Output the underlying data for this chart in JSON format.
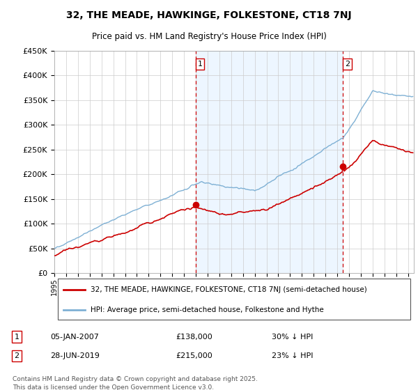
{
  "title_line1": "32, THE MEADE, HAWKINGE, FOLKESTONE, CT18 7NJ",
  "title_line2": "Price paid vs. HM Land Registry's House Price Index (HPI)",
  "legend_label_red": "32, THE MEADE, HAWKINGE, FOLKESTONE, CT18 7NJ (semi-detached house)",
  "legend_label_blue": "HPI: Average price, semi-detached house, Folkestone and Hythe",
  "transaction1_label": "1",
  "transaction1_date": "05-JAN-2007",
  "transaction1_price": "£138,000",
  "transaction1_hpi": "30% ↓ HPI",
  "transaction2_label": "2",
  "transaction2_date": "28-JUN-2019",
  "transaction2_price": "£215,000",
  "transaction2_hpi": "23% ↓ HPI",
  "footer": "Contains HM Land Registry data © Crown copyright and database right 2025.\nThis data is licensed under the Open Government Licence v3.0.",
  "color_red": "#cc0000",
  "color_blue": "#7eb0d4",
  "color_vline": "#cc0000",
  "color_shade": "#ddeeff",
  "ylim_min": 0,
  "ylim_max": 450000,
  "yticks": [
    0,
    50000,
    100000,
    150000,
    200000,
    250000,
    300000,
    350000,
    400000,
    450000
  ],
  "ytick_labels": [
    "£0",
    "£50K",
    "£100K",
    "£150K",
    "£200K",
    "£250K",
    "£300K",
    "£350K",
    "£400K",
    "£450K"
  ],
  "transaction1_x": 2007.02,
  "transaction1_y": 138000,
  "transaction2_x": 2019.49,
  "transaction2_y": 215000,
  "xmin": 1995,
  "xmax": 2025.5
}
